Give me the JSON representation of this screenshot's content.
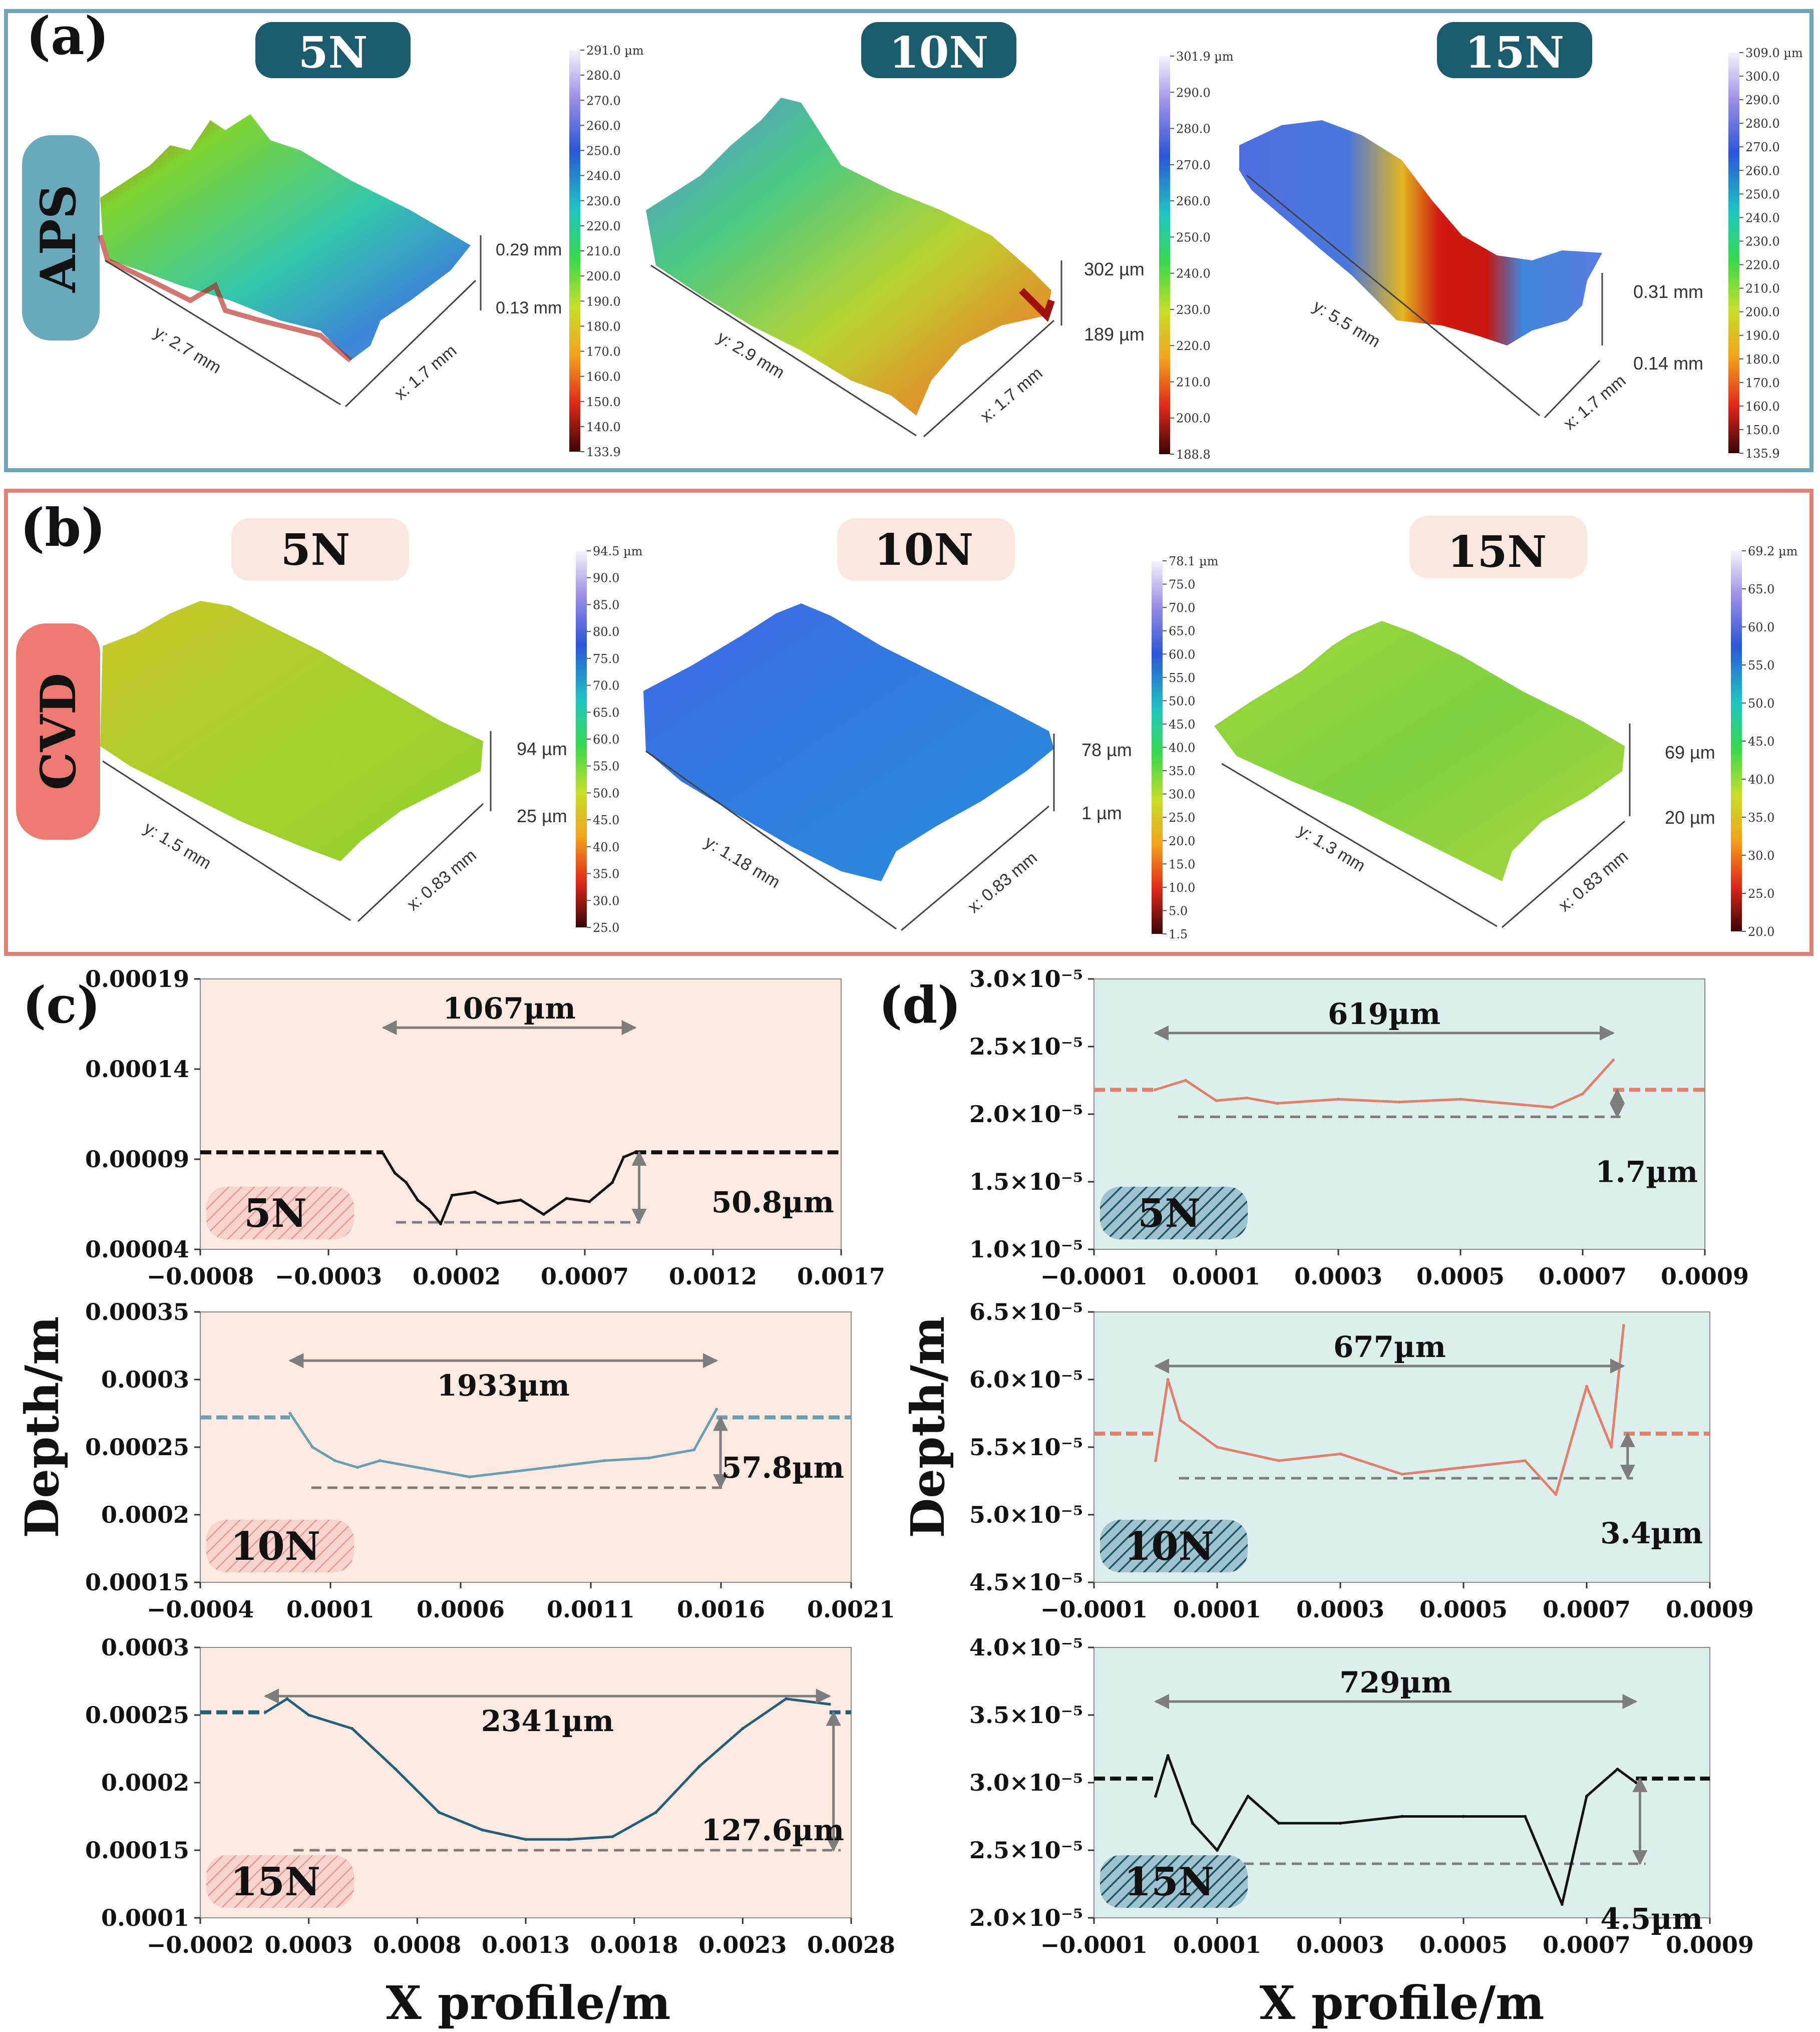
{
  "panel_a": {
    "letter": "(a)",
    "row_label": "APS",
    "loads": [
      "5N",
      "10N",
      "15N"
    ],
    "colors": {
      "border": "#6aa6b5",
      "badge": "#1b5b6e",
      "badge_text": "#ffffff",
      "row_tag": "#6aa8bb"
    },
    "surfaces": [
      {
        "y_axis": "y: 2.7 mm",
        "x_axis": "x: 1.7 mm",
        "z_top": "0.29 mm",
        "z_bottom": "0.13 mm",
        "scale_ticks": [
          "291.0 µm",
          "280.0",
          "270.0",
          "260.0",
          "250.0",
          "240.0",
          "230.0",
          "220.0",
          "210.0",
          "200.0",
          "190.0",
          "180.0",
          "170.0",
          "160.0",
          "150.0",
          "140.0",
          "133.9"
        ]
      },
      {
        "y_axis": "y: 2.9 mm",
        "x_axis": "x: 1.7 mm",
        "z_top": "302 µm",
        "z_bottom": "189 µm",
        "scale_ticks": [
          "301.9 µm",
          "290.0",
          "280.0",
          "270.0",
          "260.0",
          "250.0",
          "240.0",
          "230.0",
          "220.0",
          "210.0",
          "200.0",
          "188.8"
        ]
      },
      {
        "y_axis": "y: 5.5 mm",
        "x_axis": "x: 1.7 mm",
        "z_top": "0.31 mm",
        "z_bottom": "0.14 mm",
        "scale_ticks": [
          "309.0 µm",
          "300.0",
          "290.0",
          "280.0",
          "270.0",
          "260.0",
          "250.0",
          "240.0",
          "230.0",
          "220.0",
          "210.0",
          "200.0",
          "190.0",
          "180.0",
          "170.0",
          "160.0",
          "150.0",
          "135.9"
        ]
      }
    ]
  },
  "panel_b": {
    "letter": "(b)",
    "row_label": "CVD",
    "loads": [
      "5N",
      "10N",
      "15N"
    ],
    "colors": {
      "border": "#e07f76",
      "badge": "#fbe7df",
      "badge_text": "#111111",
      "row_tag": "#ec7a70"
    },
    "surfaces": [
      {
        "y_axis": "y: 1.5 mm",
        "x_axis": "x: 0.83 mm",
        "z_top": "94 µm",
        "z_bottom": "25 µm",
        "scale_ticks": [
          "94.5 µm",
          "90.0",
          "85.0",
          "80.0",
          "75.0",
          "70.0",
          "65.0",
          "60.0",
          "55.0",
          "50.0",
          "45.0",
          "40.0",
          "35.0",
          "30.0",
          "25.0"
        ]
      },
      {
        "y_axis": "y: 1.18 mm",
        "x_axis": "x: 0.83 mm",
        "z_top": "78 µm",
        "z_bottom": "1 µm",
        "scale_ticks": [
          "78.1 µm",
          "75.0",
          "70.0",
          "65.0",
          "60.0",
          "55.0",
          "50.0",
          "45.0",
          "40.0",
          "35.0",
          "30.0",
          "25.0",
          "20.0",
          "15.0",
          "10.0",
          "5.0",
          "1.5"
        ]
      },
      {
        "y_axis": "y: 1.3 mm",
        "x_axis": "x: 0.83 mm",
        "z_top": "69 µm",
        "z_bottom": "20 µm",
        "scale_ticks": [
          "69.2 µm",
          "65.0",
          "60.0",
          "55.0",
          "50.0",
          "45.0",
          "40.0",
          "35.0",
          "30.0",
          "25.0",
          "20.0"
        ]
      }
    ]
  },
  "shared_labels": {
    "ylabel": "Depth/m",
    "xlabel": "X profile/m"
  },
  "chart_data": [
    {
      "type": "line",
      "panel": "(c)",
      "load": "5N",
      "xlim": [
        -0.0008,
        0.002
      ],
      "ylim": [
        4e-05,
        0.00021
      ],
      "xticks": [
        "−0.0008",
        "−0.0003",
        "0.0002",
        "0.0007",
        "0.0012",
        "0.0017"
      ],
      "yticks": [
        "0.00004",
        "0.00009",
        "0.00014",
        "0.00019"
      ],
      "width_annotation": "1067µm",
      "depth_annotation": "50.8µm",
      "series": [
        {
          "color": "#111111",
          "x": [
            0.0,
            5e-05,
            0.0001,
            0.00015,
            0.0002,
            0.00025,
            0.0003,
            0.0004,
            0.0005,
            0.0006,
            0.0007,
            0.0008,
            0.0009,
            0.001,
            0.00105,
            0.0011
          ],
          "y": [
            0.0001,
            8.8e-05,
            8.2e-05,
            7.1e-05,
            6.5e-05,
            5.6e-05,
            7.4e-05,
            7.6e-05,
            6.9e-05,
            7.1e-05,
            6.2e-05,
            7.2e-05,
            7e-05,
            8.2e-05,
            9.8e-05,
            0.000101
          ]
        }
      ],
      "reference_level": 0.000101,
      "bottom_level": 5.7e-05
    },
    {
      "type": "line",
      "panel": "(c)",
      "load": "10N",
      "xlim": [
        -0.0004,
        0.0025
      ],
      "ylim": [
        0.00015,
        0.00035
      ],
      "xticks": [
        "−0.0004",
        "0.0001",
        "0.0006",
        "0.0011",
        "0.0016",
        "0.0021"
      ],
      "yticks": [
        "0.00015",
        "0.0002",
        "0.00025",
        "0.0003",
        "0.00035"
      ],
      "width_annotation": "1933µm",
      "depth_annotation": "57.8µm",
      "series": [
        {
          "color": "#6a9fb1",
          "x": [
            0.0,
            0.0001,
            0.0002,
            0.0003,
            0.0004,
            0.0006,
            0.0008,
            0.001,
            0.0012,
            0.0014,
            0.0016,
            0.0018,
            0.0019
          ],
          "y": [
            0.000275,
            0.00025,
            0.00024,
            0.000235,
            0.00024,
            0.000234,
            0.000228,
            0.000232,
            0.000236,
            0.00024,
            0.000242,
            0.000248,
            0.000278
          ]
        }
      ],
      "reference_level": 0.000272,
      "bottom_level": 0.00022
    },
    {
      "type": "line",
      "panel": "(c)",
      "load": "15N",
      "xlim": [
        -0.0002,
        0.0028
      ],
      "ylim": [
        0.0001,
        0.0003
      ],
      "xticks": [
        "−0.0002",
        "0.0003",
        "0.0008",
        "0.0013",
        "0.0018",
        "0.0023",
        "0.0028"
      ],
      "yticks": [
        "0.0001",
        "0.00015",
        "0.0002",
        "0.00025",
        "0.0003"
      ],
      "width_annotation": "2341µm",
      "depth_annotation": "127.6µm",
      "series": [
        {
          "color": "#245f78",
          "x": [
            0.0001,
            0.0002,
            0.0003,
            0.0005,
            0.0007,
            0.0009,
            0.0011,
            0.0013,
            0.0015,
            0.0017,
            0.0019,
            0.0021,
            0.0023,
            0.0025,
            0.0027
          ],
          "y": [
            0.000252,
            0.000262,
            0.00025,
            0.00024,
            0.00021,
            0.000178,
            0.000165,
            0.000158,
            0.000158,
            0.00016,
            0.000178,
            0.000212,
            0.00024,
            0.000262,
            0.000258
          ]
        }
      ],
      "reference_level": 0.000252,
      "bottom_level": 0.00015
    },
    {
      "type": "line",
      "panel": "(d)",
      "load": "5N",
      "xlim": [
        -0.0001,
        0.0009
      ],
      "ylim": [
        1e-05,
        3e-05
      ],
      "xticks": [
        "−0.0001",
        "0.0001",
        "0.0003",
        "0.0005",
        "0.0007",
        "0.0009"
      ],
      "yticks": [
        "1.0×10⁻⁵",
        "1.5×10⁻⁵",
        "2.0×10⁻⁵",
        "2.5×10⁻⁵",
        "3.0×10⁻⁵"
      ],
      "width_annotation": "619µm",
      "depth_annotation": "1.7µm",
      "series": [
        {
          "color": "#e2806c",
          "x": [
            0.0,
            5e-05,
            0.0001,
            0.00015,
            0.0002,
            0.0003,
            0.0004,
            0.0005,
            0.0006,
            0.00065,
            0.0007,
            0.00075
          ],
          "y": [
            2.18e-05,
            2.25e-05,
            2.1e-05,
            2.12e-05,
            2.08e-05,
            2.11e-05,
            2.09e-05,
            2.11e-05,
            2.07e-05,
            2.05e-05,
            2.15e-05,
            2.4e-05
          ]
        }
      ],
      "reference_level": 2.18e-05,
      "bottom_level": 1.98e-05
    },
    {
      "type": "line",
      "panel": "(d)",
      "load": "10N",
      "xlim": [
        -0.0001,
        0.0009
      ],
      "ylim": [
        4.5e-05,
        6.5e-05
      ],
      "xticks": [
        "−0.0001",
        "0.0001",
        "0.0003",
        "0.0005",
        "0.0007",
        "0.0009"
      ],
      "yticks": [
        "4.5×10⁻⁵",
        "5.0×10⁻⁵",
        "5.5×10⁻⁵",
        "6.0×10⁻⁵",
        "6.5×10⁻⁵"
      ],
      "width_annotation": "677µm",
      "depth_annotation": "3.4µm",
      "series": [
        {
          "color": "#e2806c",
          "x": [
            0.0,
            2e-05,
            4e-05,
            0.0001,
            0.0002,
            0.0003,
            0.0004,
            0.0005,
            0.0006,
            0.00065,
            0.0007,
            0.00074,
            0.00076
          ],
          "y": [
            5.4e-05,
            6e-05,
            5.7e-05,
            5.5e-05,
            5.4e-05,
            5.45e-05,
            5.3e-05,
            5.35e-05,
            5.4e-05,
            5.15e-05,
            5.95e-05,
            5.5e-05,
            6.4e-05
          ]
        }
      ],
      "reference_level": 5.6e-05,
      "bottom_level": 5.27e-05
    },
    {
      "type": "line",
      "panel": "(d)",
      "load": "15N",
      "xlim": [
        -0.0001,
        0.0009
      ],
      "ylim": [
        2e-05,
        4e-05
      ],
      "xticks": [
        "−0.0001",
        "0.0001",
        "0.0003",
        "0.0005",
        "0.0007",
        "0.0009"
      ],
      "yticks": [
        "2.0×10⁻⁵",
        "2.5×10⁻⁵",
        "3.0×10⁻⁵",
        "3.5×10⁻⁵",
        "4.0×10⁻⁵"
      ],
      "width_annotation": "729µm",
      "depth_annotation": "4.5µm",
      "series": [
        {
          "color": "#111111",
          "x": [
            0.0,
            2e-05,
            6e-05,
            0.0001,
            0.00015,
            0.0002,
            0.0003,
            0.0004,
            0.0005,
            0.0006,
            0.00066,
            0.0007,
            0.00075,
            0.00078
          ],
          "y": [
            2.9e-05,
            3.2e-05,
            2.7e-05,
            2.5e-05,
            2.9e-05,
            2.7e-05,
            2.7e-05,
            2.75e-05,
            2.75e-05,
            2.75e-05,
            2.1e-05,
            2.9e-05,
            3.1e-05,
            3e-05
          ]
        }
      ],
      "reference_level": 3.03e-05,
      "bottom_level": 2.4e-05
    }
  ],
  "panel_letters": {
    "c": "(c)",
    "d": "(d)"
  },
  "plot_colors": {
    "c_background": "#fce9e1",
    "d_background": "#dcefed",
    "c_tag": "#efb9b1",
    "d_tag": "#2d5e72",
    "arrow": "#7d7d7d"
  }
}
